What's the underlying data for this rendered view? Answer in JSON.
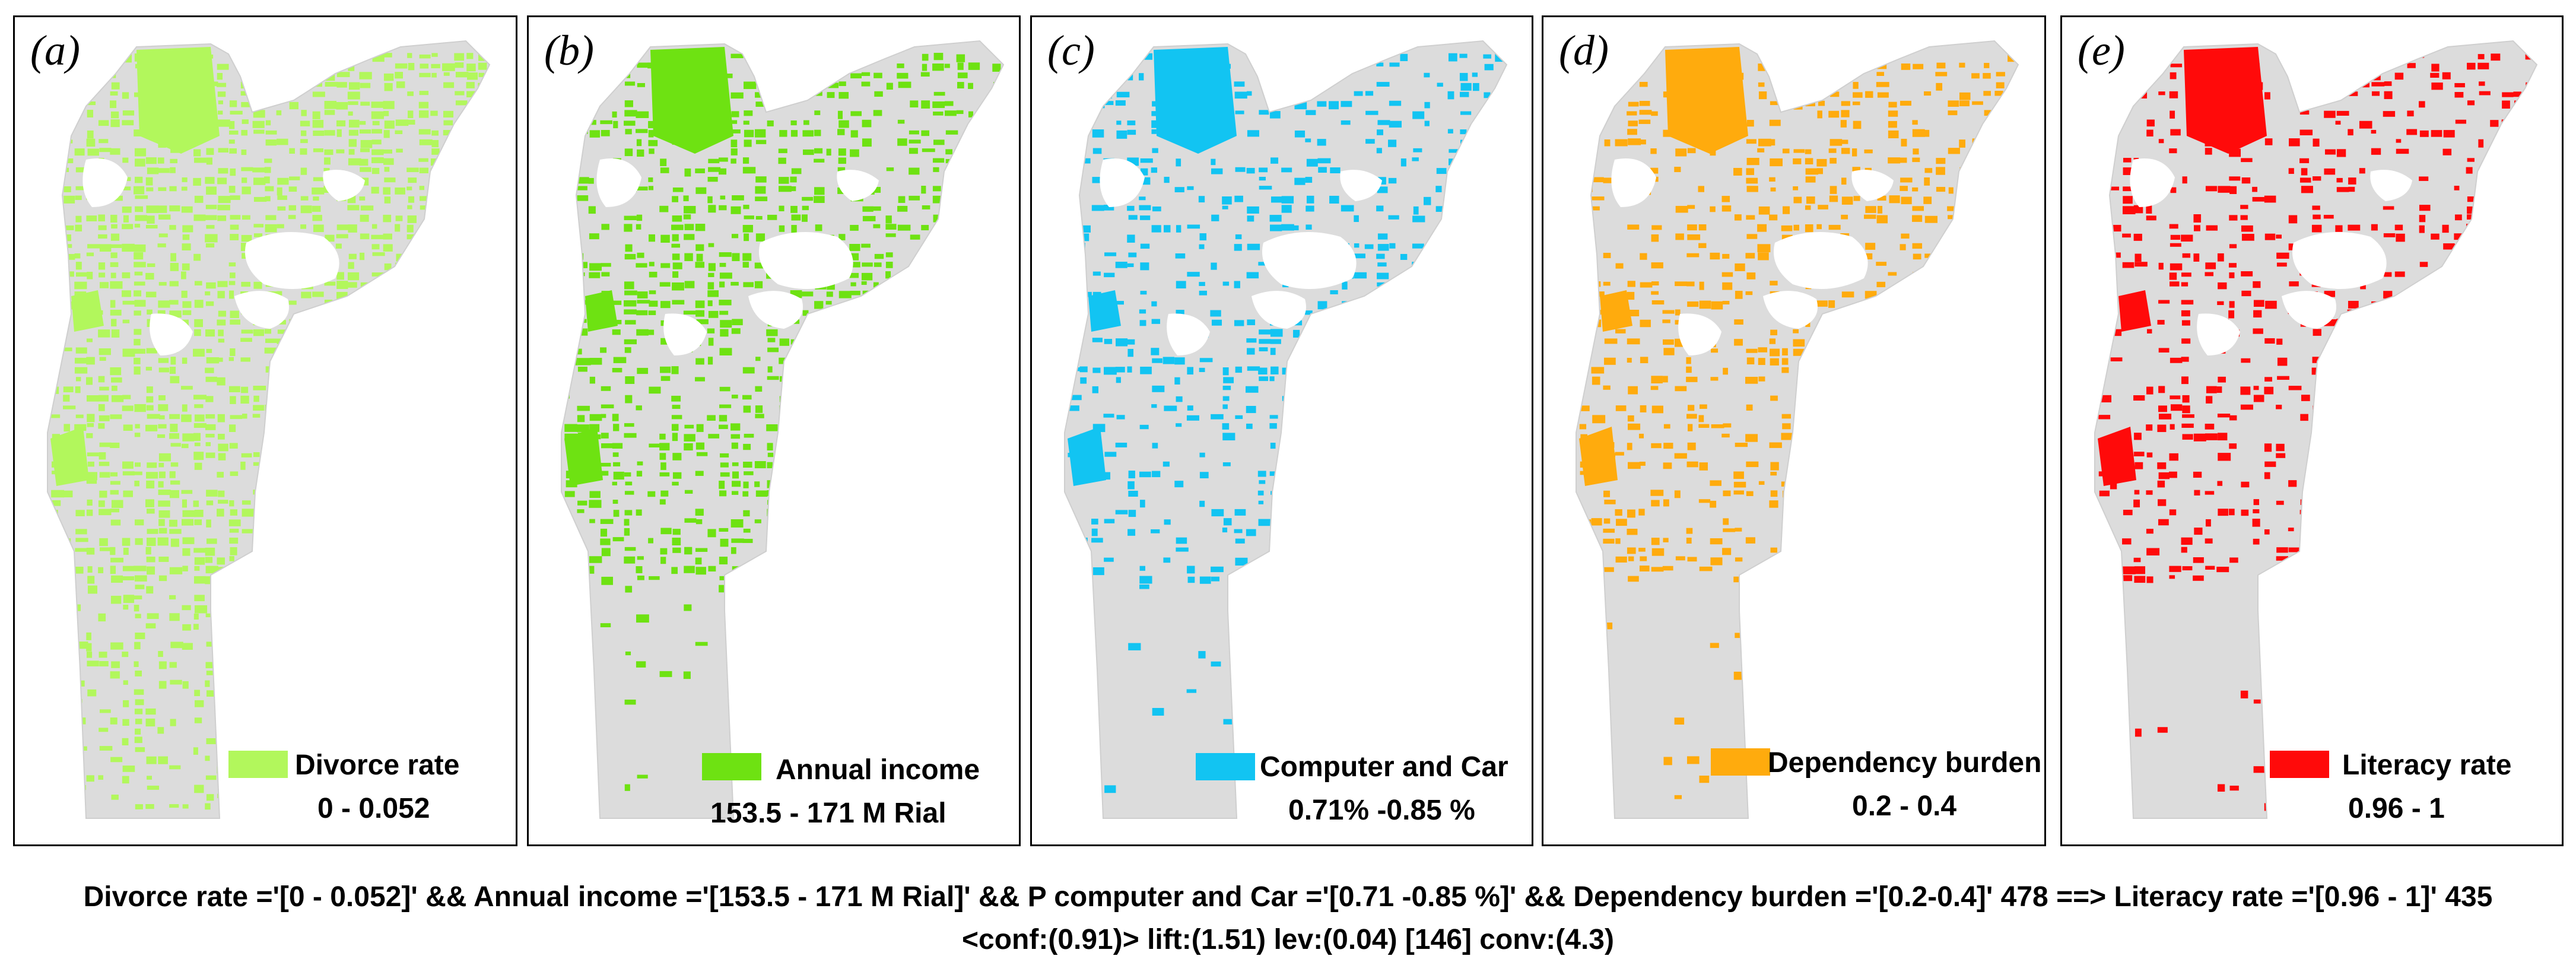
{
  "panels": [
    {
      "letter": "(a)",
      "legend_label": "Divorce rate",
      "legend_range": "0 - 0.052",
      "color": "#b2f75c"
    },
    {
      "letter": "(b)",
      "legend_label": "Annual income",
      "legend_range": "153.5 - 171 M Rial",
      "color": "#6ee212"
    },
    {
      "letter": "(c)",
      "legend_label": "Computer and Car",
      "legend_range": "0.71% -0.85 %",
      "color": "#12c4f2"
    },
    {
      "letter": "(d)",
      "legend_label": "Dependency burden",
      "legend_range": "0.2 - 0.4",
      "color": "#ffab0d"
    },
    {
      "letter": "(e)",
      "legend_label": "Literacy rate",
      "legend_range": "0.96 - 1",
      "color": "#ff0a0a"
    }
  ],
  "base_color": "#dcdcdc",
  "caption": {
    "line1": "Divorce rate ='[0 - 0.052]' && Annual income ='[153.5 - 171 M Rial]' && P computer and Car ='[0.71 -0.85 %]' && Dependency burden ='[0.2-0.4]' 478 ==> Literacy rate ='[0.96 - 1]' 435",
    "line2": "<conf:(0.91)> lift:(1.51) lev:(0.04) [146] conv:(4.3)"
  }
}
